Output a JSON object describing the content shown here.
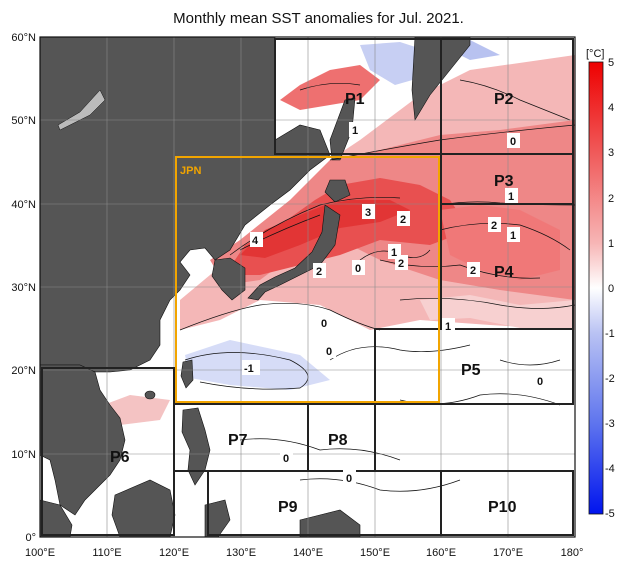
{
  "title": "Monthly mean SST anomalies for Jul. 2021.",
  "axes": {
    "x_ticks": [
      "100°E",
      "110°E",
      "120°E",
      "130°E",
      "140°E",
      "150°E",
      "160°E",
      "170°E",
      "180°"
    ],
    "y_ticks": [
      "60°N",
      "50°N",
      "40°N",
      "30°N",
      "20°N",
      "10°N",
      "0°"
    ]
  },
  "colorbar": {
    "unit": "[°C]",
    "labels": [
      "5",
      "4",
      "3",
      "2",
      "1",
      "0",
      "-1",
      "-2",
      "-3",
      "-4",
      "-5"
    ]
  },
  "regions": {
    "jpn": "JPN",
    "p1": "P1",
    "p2": "P2",
    "p3": "P3",
    "p4": "P4",
    "p5": "P5",
    "p6": "P6",
    "p7": "P7",
    "p8": "P8",
    "p9": "P9",
    "p10": "P10"
  },
  "contours": {
    "c4": "4",
    "c3": "3",
    "c2a": "2",
    "c2b": "2",
    "c2c": "2",
    "c2d": "2",
    "c1a": "1",
    "c1b": "1",
    "c1c": "1",
    "c0a": "0",
    "c0b": "0",
    "c0c": "0",
    "cm1": "-1",
    "c0p2": "0",
    "c0p3": "1",
    "c1p5": "1",
    "c0p5": "0",
    "c0p9": "0",
    "c0p7": "0",
    "c1p3": "2"
  },
  "colors": {
    "land": "#555555",
    "box": "#222222",
    "jpn_box": "#f2a500",
    "warm": "#e8323a",
    "cool": "#4a5ee8"
  }
}
